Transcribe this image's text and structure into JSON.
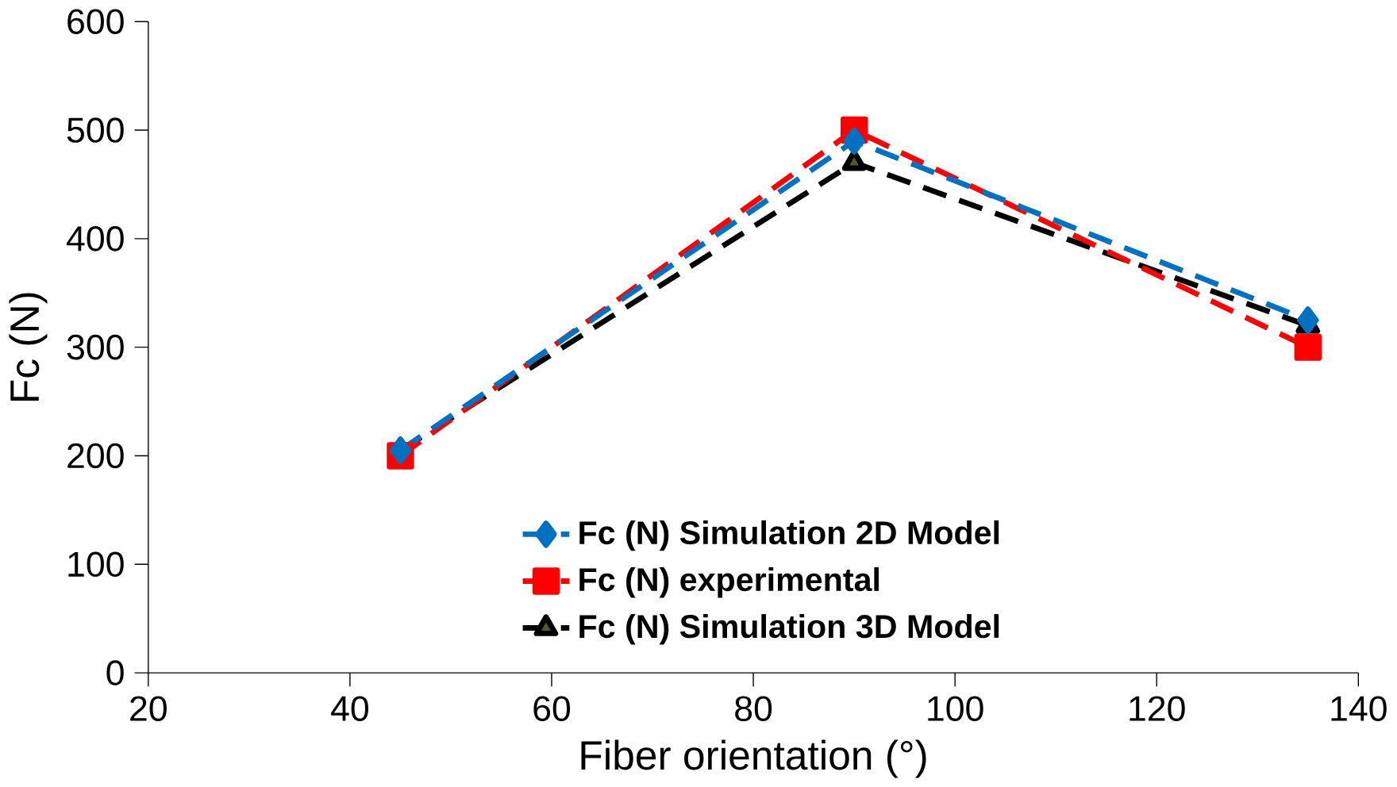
{
  "chart_data": {
    "type": "line",
    "xlabel": "Fiber orientation (°)",
    "ylabel": "Fc (N)",
    "x": [
      45,
      90,
      135
    ],
    "series": [
      {
        "name": "Fc (N) Simulation 2D Model",
        "color": "#0070c0",
        "values": [
          205,
          490,
          325
        ],
        "marker": "diamond",
        "line_style": "dashed"
      },
      {
        "name": "Fc (N) experimental",
        "color": "#ff0000",
        "values": [
          200,
          500,
          300
        ],
        "marker": "square",
        "line_style": "dashed"
      },
      {
        "name": "Fc (N) Simulation 3D Model",
        "color": "#000000",
        "values": [
          205,
          470,
          320
        ],
        "marker": "triangle",
        "line_style": "dashed"
      }
    ],
    "xlim": [
      20,
      140
    ],
    "xticks": [
      20,
      40,
      60,
      80,
      100,
      120,
      140
    ],
    "ylim": [
      0,
      600
    ],
    "yticks": [
      0,
      100,
      200,
      300,
      400,
      500,
      600
    ],
    "grid": false,
    "legend": "bottom"
  }
}
